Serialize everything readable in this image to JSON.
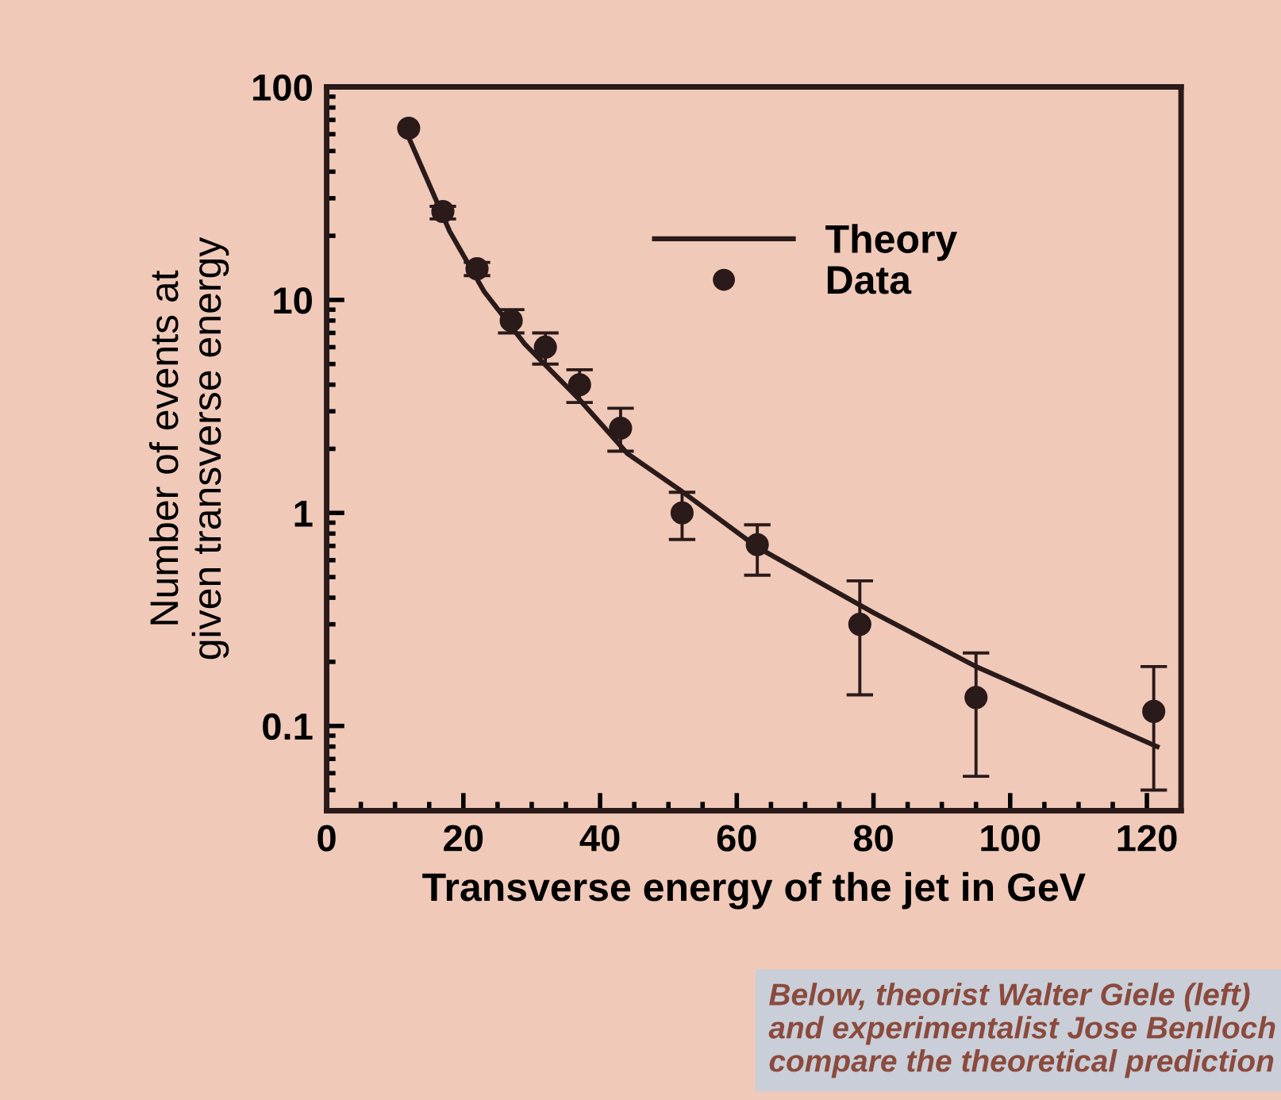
{
  "chart_data": {
    "type": "scatter",
    "xlabel": "Transverse energy of the jet in GeV",
    "ylabel": "Number of events at\ngiven transverse energy",
    "series": [
      {
        "name": "Theory",
        "type": "line",
        "marker": "none",
        "color": "#2a1a1a",
        "x": [
          12,
          18,
          23,
          29,
          37,
          44,
          52,
          63,
          80,
          95,
          121.5
        ],
        "values": [
          58,
          21,
          11,
          6.2,
          3.4,
          1.9,
          1.26,
          0.69,
          0.34,
          0.19,
          0.08
        ]
      },
      {
        "name": "Data",
        "color": "#2a1a1a",
        "x": [
          12,
          17,
          22,
          27,
          32,
          37,
          43,
          52,
          63,
          78,
          95,
          121
        ],
        "values": [
          64,
          26,
          14,
          8,
          6,
          4,
          2.5,
          1.0,
          0.71,
          0.3,
          0.136,
          0.117
        ],
        "errors": [
          null,
          [
            24,
            27.5
          ],
          [
            13,
            15
          ],
          [
            7,
            9
          ],
          [
            5,
            7
          ],
          [
            3.3,
            4.7
          ],
          [
            1.95,
            3.1
          ],
          [
            0.75,
            1.25
          ],
          [
            0.51,
            0.88
          ],
          [
            0.14,
            0.48
          ],
          [
            0.058,
            0.22
          ],
          [
            0.05,
            0.19
          ]
        ]
      }
    ],
    "log": "y",
    "xlim": [
      0,
      125
    ],
    "ylim": [
      0.04,
      100
    ],
    "xticks": [
      0,
      20,
      40,
      60,
      80,
      100,
      120
    ],
    "yticks": [
      0.1,
      1,
      10,
      100
    ],
    "grid": false,
    "legend": "top right",
    "marker": "circle",
    "annotations": [
      "Below, theorist Walter Giele (left) and experimentalist Jose Benlloch compare the theoretical prediction"
    ]
  }
}
